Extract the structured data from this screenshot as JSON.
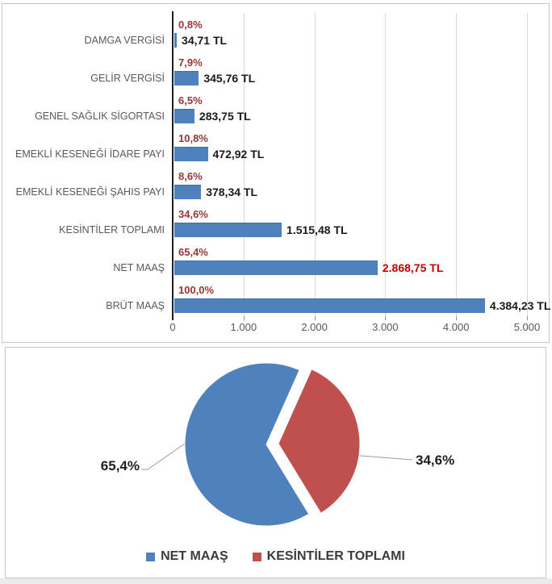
{
  "chart_data": [
    {
      "type": "bar",
      "orientation": "horizontal",
      "categories": [
        "DAMGA VERGİSİ",
        "GELİR VERGİSİ",
        "GENEL SAĞLIK SİGORTASI",
        "EMEKLİ KESENEĞİ İDARE PAYI",
        "EMEKLİ KESENEĞİ ŞAHIS PAYI",
        "KESİNTİLER TOPLAMI",
        "NET MAAŞ",
        "BRÜT MAAŞ"
      ],
      "values": [
        34.71,
        345.76,
        283.75,
        472.92,
        378.34,
        1515.48,
        2868.75,
        4384.23
      ],
      "value_labels": [
        "34,71 TL",
        "345,76 TL",
        "283,75 TL",
        "472,92 TL",
        "378,34 TL",
        "1.515,48 TL",
        "2.868,75 TL",
        "4.384,23 TL"
      ],
      "percent_labels": [
        "0,8%",
        "7,9%",
        "6,5%",
        "10,8%",
        "8,6%",
        "34,6%",
        "65,4%",
        "100,0%"
      ],
      "highlighted_value_index": 6,
      "xlim": [
        0,
        5000
      ],
      "x_tick_values": [
        0,
        1000,
        2000,
        3000,
        4000,
        5000
      ],
      "x_tick_labels": [
        "0",
        "1.000",
        "2.000",
        "3.000",
        "4.000",
        "5.000"
      ],
      "grid": true,
      "legend": "none",
      "colors": {
        "bar": "#4f81bd",
        "bar_border": "#3d6da5",
        "percent_label": "#953735",
        "value_label": "#1a1a1a",
        "value_label_highlight": "#c00000",
        "category_label": "#595959",
        "axis_line": "#1f1f1f",
        "gridline": "#d8d8d8"
      }
    },
    {
      "type": "pie",
      "slices": [
        {
          "label": "NET MAAŞ",
          "value": 65.4,
          "pct_label": "65,4%",
          "color": "#4f81bd",
          "exploded": false
        },
        {
          "label": "KESİNTİLER TOPLAMI",
          "value": 34.6,
          "pct_label": "34,6%",
          "color": "#c0504d",
          "exploded": true
        }
      ],
      "rotation_deg": 24,
      "legend_position": "bottom",
      "legend": [
        {
          "label": "NET MAAŞ",
          "color": "#4f81bd"
        },
        {
          "label": "KESİNTİLER TOPLAMI",
          "color": "#c0504d"
        }
      ],
      "colors": {
        "leader_line": "#9a9a9a",
        "label_text": "#1f1f1f",
        "legend_text": "#3b3b3b"
      }
    }
  ]
}
